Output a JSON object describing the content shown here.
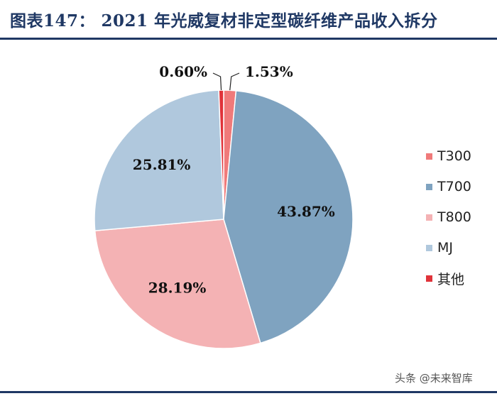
{
  "header": {
    "title": "图表147： 2021 年光威复材非定型碳纤维产品收入拆分"
  },
  "chart_data": {
    "type": "pie",
    "title": "",
    "start_angle_deg": -90,
    "direction": "clockwise",
    "slices": [
      {
        "name": "T300",
        "value": 1.53,
        "label": "1.53%",
        "color": "#f07a7a"
      },
      {
        "name": "T700",
        "value": 43.87,
        "label": "43.87%",
        "color": "#7fa3c0"
      },
      {
        "name": "T800",
        "value": 28.19,
        "label": "28.19%",
        "color": "#f4b2b4"
      },
      {
        "name": "MJ",
        "value": 25.81,
        "label": "25.81%",
        "color": "#b0c8dd"
      },
      {
        "name": "其他",
        "value": 0.6,
        "label": "0.60%",
        "color": "#e0333a"
      }
    ],
    "legend_position": "right"
  },
  "watermark": "头条 @未来智库"
}
